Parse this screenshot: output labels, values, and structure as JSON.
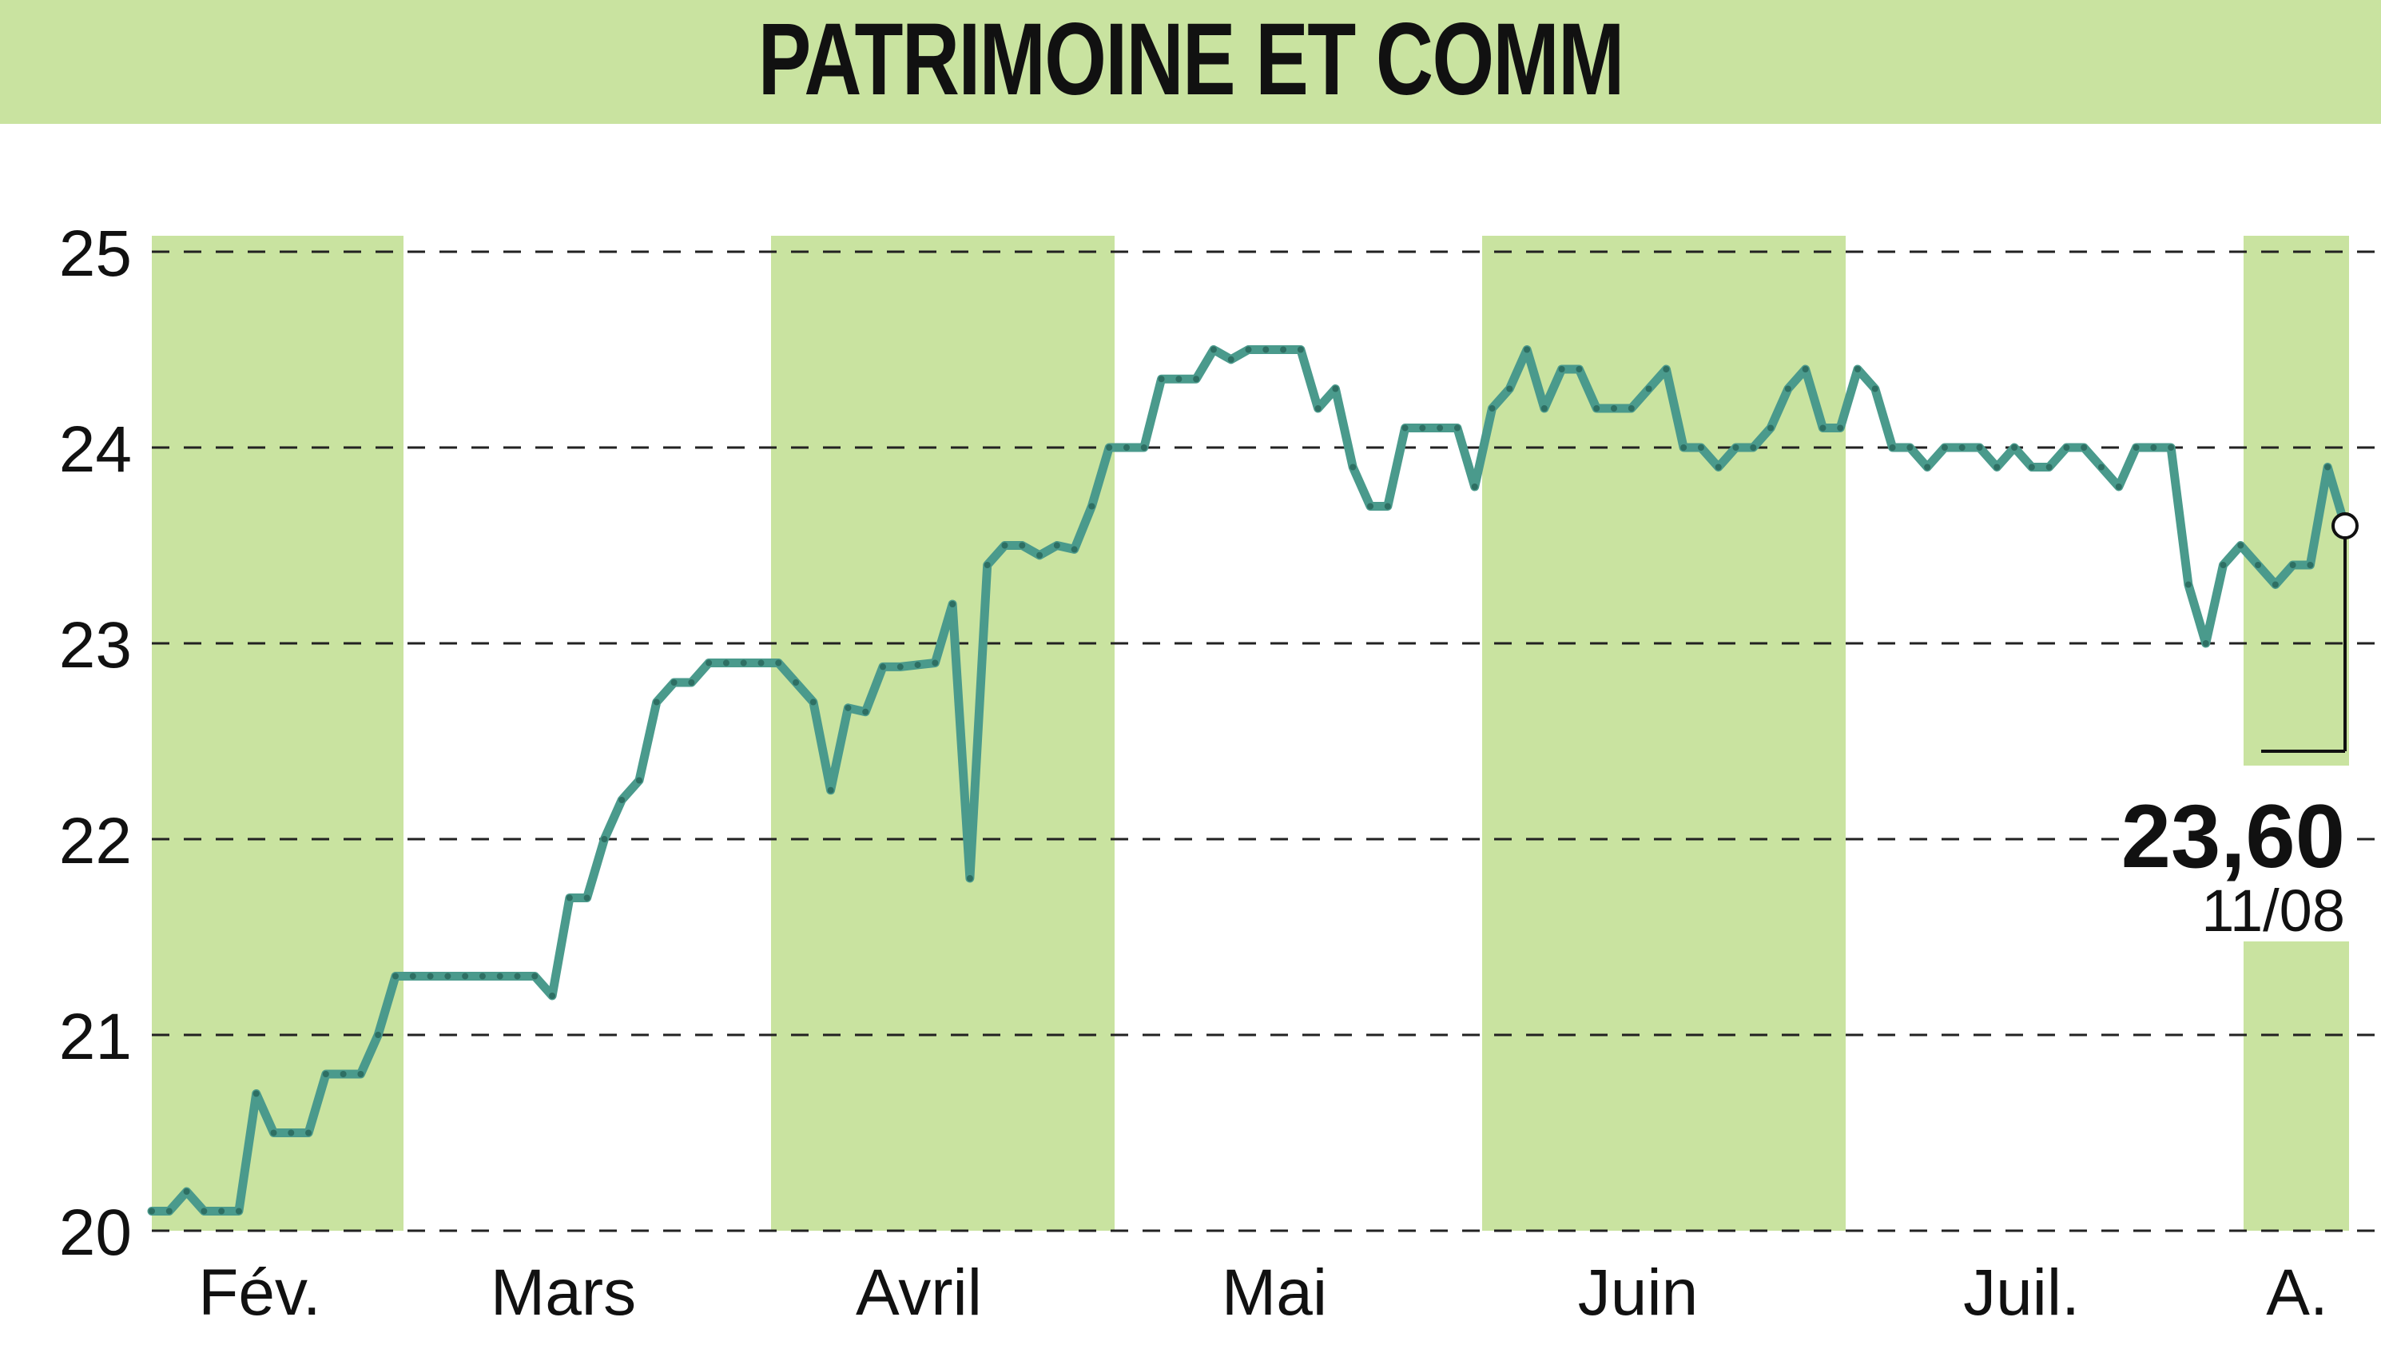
{
  "chart_data": {
    "type": "line",
    "title": "PATRIMOINE ET COMM",
    "ylim": [
      20,
      25
    ],
    "yticks": [
      "20",
      "21",
      "22",
      "23",
      "24",
      "25"
    ],
    "x_labels": [
      "Fév.",
      "Mars",
      "Avril",
      "Mai",
      "Juin",
      "Juil.",
      "A."
    ],
    "grid": "horizontal dashed",
    "line_color": "#4a9a8c",
    "band_color": "#c9e3a0",
    "last_value": "23,60",
    "last_date": "11/08",
    "series": [
      {
        "values": [
          20.1,
          20.1,
          20.2,
          20.1,
          20.1,
          20.1,
          20.7,
          20.5,
          20.5,
          20.5,
          20.8,
          20.8,
          20.8,
          21.0,
          21.3,
          21.3,
          21.3,
          21.3,
          21.3,
          21.3,
          21.3,
          21.3,
          21.3,
          21.2,
          21.7,
          21.7,
          22.0,
          22.2,
          22.3,
          22.7,
          22.8,
          22.8,
          22.9,
          22.9,
          22.9,
          22.9,
          22.9,
          22.8,
          22.7,
          22.25,
          22.67,
          22.65,
          22.88,
          22.88,
          22.89,
          22.9,
          23.2,
          21.8,
          23.4,
          23.5,
          23.5,
          23.45,
          23.5,
          23.48,
          23.7,
          24.0,
          24.0,
          24.0,
          24.35,
          24.35,
          24.35,
          24.5,
          24.45,
          24.5,
          24.5,
          24.5,
          24.5,
          24.2,
          24.3,
          23.9,
          23.7,
          23.7,
          24.1,
          24.1,
          24.1,
          24.1,
          23.8,
          24.2,
          24.3,
          24.5,
          24.2,
          24.4,
          24.4,
          24.2,
          24.2,
          24.2,
          24.3,
          24.4,
          24.0,
          24.0,
          23.9,
          24.0,
          24.0,
          24.1,
          24.3,
          24.4,
          24.1,
          24.1,
          24.4,
          24.3,
          24.0,
          24.0,
          23.9,
          24.0,
          24.0,
          24.0,
          23.9,
          24.0,
          23.9,
          23.9,
          24.0,
          24.0,
          23.9,
          23.8,
          24.0,
          24.0,
          24.0,
          23.3,
          23.0,
          23.4,
          23.5,
          23.4,
          23.3,
          23.4,
          23.4,
          23.9,
          23.6
        ]
      }
    ]
  }
}
